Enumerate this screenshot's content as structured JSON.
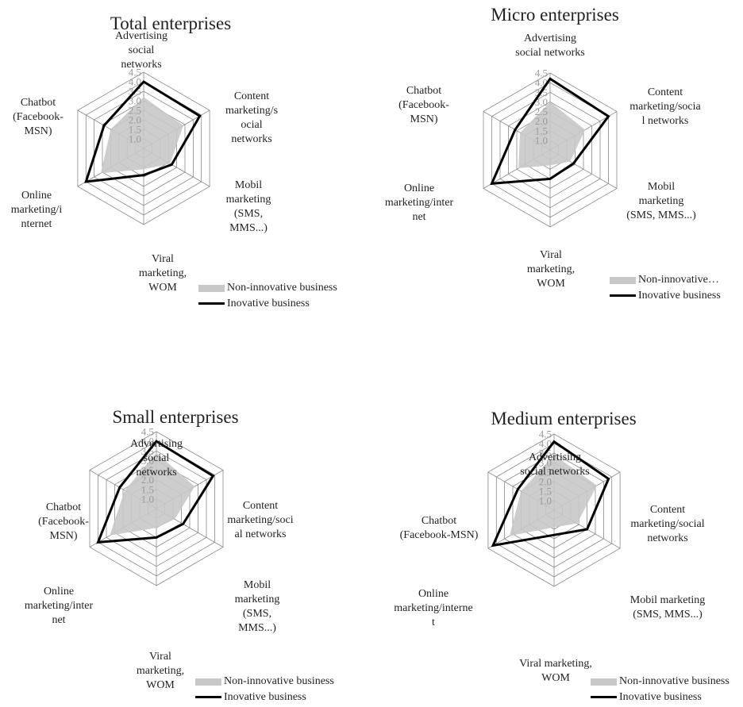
{
  "charts": [
    {
      "title": "Total enterprises",
      "axes": [
        "Advertising\nsocial\nnetworks",
        "Content\nmarketing/s\nocial\nnetworks",
        "Mobil\nmarketing\n(SMS,\nMMS...)",
        "Viral\nmarketing,\nWOM",
        "Online\nmarketing/i\nnternet",
        "Chatbot\n(Facebook-\nMSN)"
      ],
      "legend": [
        "Non-innovative business",
        "Inovative business"
      ]
    },
    {
      "title": "Micro enterprises",
      "axes": [
        "Advertising\nsocial networks",
        "Content\nmarketing/socia\nl networks",
        "Mobil\nmarketing\n(SMS, MMS...)",
        "Viral\nmarketing,\nWOM",
        "Online\nmarketing/inter\nnet",
        "Chatbot\n(Facebook-\nMSN)"
      ],
      "legend": [
        "Non-innovative…",
        "Inovative business"
      ]
    },
    {
      "title": "Small enterprises",
      "axes": [
        "Advertising\nsocial\nnetworks",
        "Content\nmarketing/soci\nal networks",
        "Mobil\nmarketing\n(SMS,\nMMS...)",
        "Viral\nmarketing,\nWOM",
        "Online\nmarketing/inter\nnet",
        "Chatbot\n(Facebook-\nMSN)"
      ],
      "legend": [
        "Non-innovative business",
        "Inovative business"
      ]
    },
    {
      "title": "Medium enterprises",
      "axes": [
        "Advertising\nsocial networks",
        "Content\nmarketing/social\nnetworks",
        "Mobil marketing\n(SMS, MMS...)",
        "Viral marketing,\nWOM",
        "Online\nmarketing/interne\nt",
        "Chatbot\n(Facebook-MSN)"
      ],
      "legend": [
        "Non-innovative business",
        "Inovative business"
      ]
    }
  ],
  "chart_data": [
    {
      "type": "radar",
      "title": "Total enterprises",
      "categories": [
        "Advertising social networks",
        "Content marketing/social networks",
        "Mobil marketing (SMS, MMS...)",
        "Viral marketing, WOM",
        "Online marketing/internet",
        "Chatbot (Facebook-MSN)"
      ],
      "series": [
        {
          "name": "Non-innovative business",
          "values": [
            3.2,
            2.9,
            2.1,
            1.6,
            3.1,
            2.5
          ],
          "color": "#c8c8c8"
        },
        {
          "name": "Inovative business",
          "values": [
            4.0,
            3.9,
            2.2,
            1.9,
            4.0,
            2.9
          ],
          "color": "#000000"
        }
      ],
      "rlim": [
        0.5,
        4.5
      ],
      "ticks": [
        "1.0",
        "1.5",
        "2.0",
        "2.5",
        "3.0",
        "3.5",
        "4.0",
        "4.5"
      ],
      "legend_position": "bottom-right"
    },
    {
      "type": "radar",
      "title": "Micro enterprises",
      "categories": [
        "Advertising social networks",
        "Content marketing/social networks",
        "Mobil marketing (SMS, MMS...)",
        "Viral marketing, WOM",
        "Online marketing/internet",
        "Chatbot (Facebook-MSN)"
      ],
      "series": [
        {
          "name": "Non-innovative business",
          "values": [
            3.0,
            2.6,
            1.7,
            1.3,
            2.4,
            2.3
          ],
          "color": "#c8c8c8"
        },
        {
          "name": "Inovative business",
          "values": [
            4.2,
            4.0,
            1.9,
            2.0,
            4.0,
            2.6
          ],
          "color": "#000000"
        }
      ],
      "rlim": [
        0.5,
        4.5
      ],
      "ticks": [
        "1.0",
        "1.5",
        "2.0",
        "2.5",
        "3.0",
        "3.5",
        "4.0",
        "4.5"
      ],
      "legend_position": "bottom-right"
    },
    {
      "type": "radar",
      "title": "Small enterprises",
      "categories": [
        "Advertising social networks",
        "Content marketing/social networks",
        "Mobil marketing (SMS, MMS...)",
        "Viral marketing, WOM",
        "Online marketing/internet",
        "Chatbot (Facebook-MSN)"
      ],
      "series": [
        {
          "name": "Non-innovative business",
          "values": [
            3.4,
            2.8,
            1.6,
            1.5,
            3.3,
            2.4
          ],
          "color": "#c8c8c8"
        },
        {
          "name": "Inovative business",
          "values": [
            4.0,
            3.9,
            2.1,
            2.0,
            4.0,
            2.7
          ],
          "color": "#000000"
        }
      ],
      "rlim": [
        0.5,
        4.5
      ],
      "ticks": [
        "1.0",
        "1.5",
        "2.0",
        "2.5",
        "3.0",
        "3.5",
        "4.0",
        "4.5"
      ],
      "legend_position": "bottom-right"
    },
    {
      "type": "radar",
      "title": "Medium enterprises",
      "categories": [
        "Advertising social networks",
        "Content marketing/social networks",
        "Mobil marketing (SMS, MMS...)",
        "Viral marketing, WOM",
        "Online marketing/internet",
        "Chatbot (Facebook-MSN)"
      ],
      "series": [
        {
          "name": "Non-innovative business",
          "values": [
            3.4,
            3.1,
            1.9,
            1.4,
            3.2,
            2.5
          ],
          "color": "#c8c8c8"
        },
        {
          "name": "Inovative business",
          "values": [
            4.1,
            3.8,
            2.5,
            1.8,
            4.2,
            2.7
          ],
          "color": "#000000"
        }
      ],
      "rlim": [
        0.5,
        4.5
      ],
      "ticks": [
        "1.0",
        "1.5",
        "2.0",
        "2.5",
        "3.0",
        "3.5",
        "4.0",
        "4.5"
      ],
      "legend_position": "bottom-right"
    }
  ]
}
